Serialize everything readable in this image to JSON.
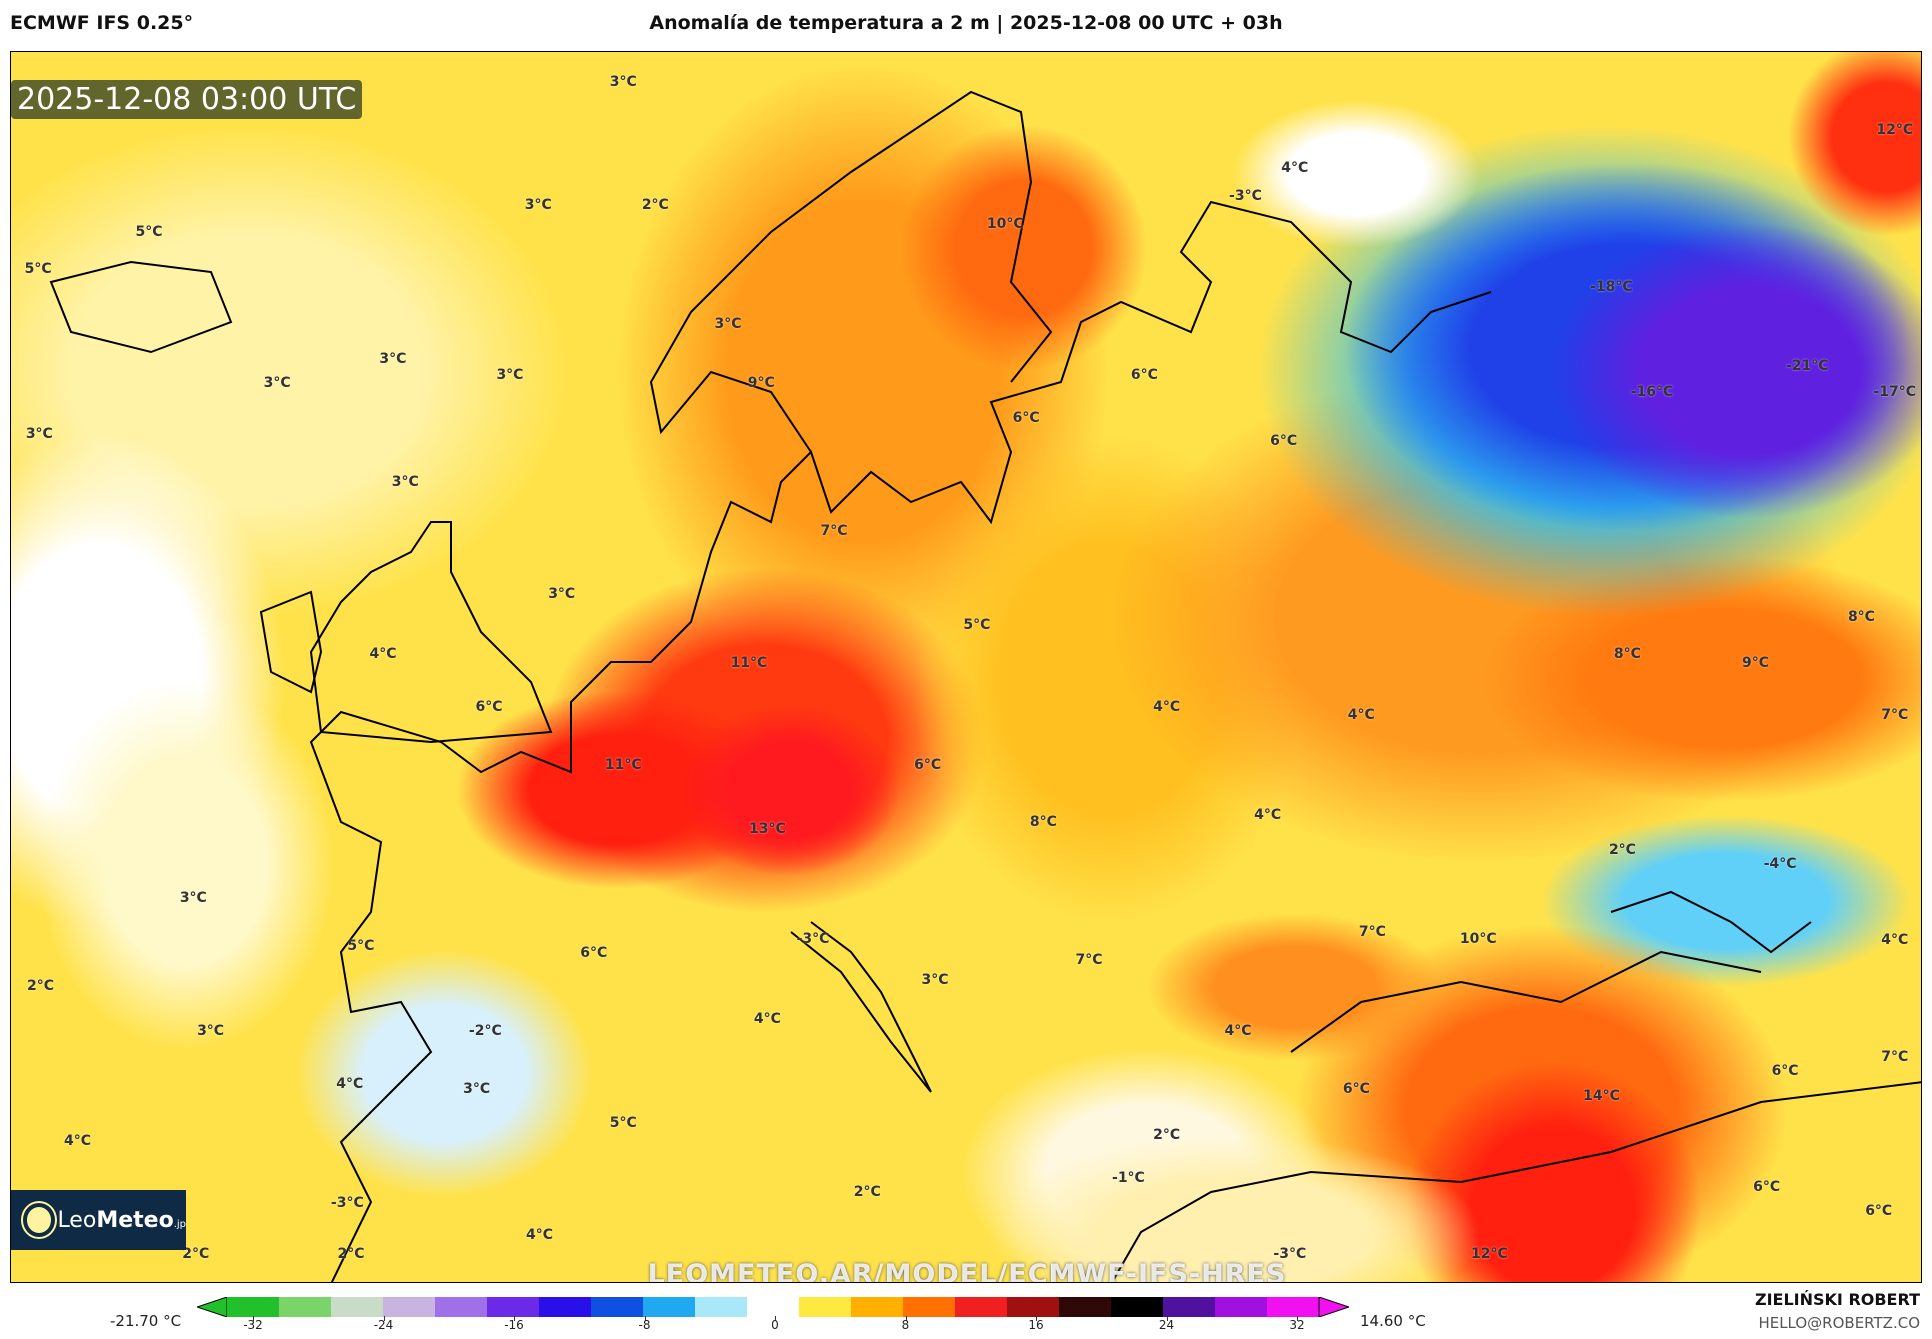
{
  "header": {
    "model": "ECMWF IFS 0.25°",
    "title": "Anomalía de temperatura a 2 m | 2025-12-08 00 UTC + 03h"
  },
  "map": {
    "valid_time": "2025-12-08 03:00 UTC",
    "logo": {
      "text_light": "Leo",
      "text_bold": "Meteo",
      "suffix": ".jp"
    },
    "watermark": "LEOMETEO.AR/MODEL/ECMWF-IFS-HRES",
    "labels": [
      "3°C",
      "3°C",
      "2°C",
      "5°C",
      "5°C",
      "10°C",
      "4°C",
      "-3°C",
      "12°C",
      "-18°C",
      "3°C",
      "3°C",
      "3°C",
      "3°C",
      "9°C",
      "6°C",
      "-21°C",
      "-16°C",
      "-17°C",
      "3°C",
      "6°C",
      "6°C",
      "3°C",
      "7°C",
      "3°C",
      "8°C",
      "5°C",
      "4°C",
      "11°C",
      "8°C",
      "9°C",
      "6°C",
      "4°C",
      "4°C",
      "7°C",
      "11°C",
      "6°C",
      "13°C",
      "8°C",
      "4°C",
      "2°C",
      "-4°C",
      "3°C",
      "7°C",
      "10°C",
      "-3°C",
      "5°C",
      "6°C",
      "4°C",
      "7°C",
      "3°C",
      "2°C",
      "4°C",
      "-2°C",
      "3°C",
      "4°C",
      "7°C",
      "3°C",
      "4°C",
      "6°C",
      "14°C",
      "6°C",
      "5°C",
      "2°C",
      "4°C",
      "-1°C",
      "2°C",
      "6°C",
      "-3°C",
      "4°C",
      "6°C",
      "2°C",
      "2°C",
      "-3°C",
      "12°C"
    ]
  },
  "colorbar": {
    "min_label": "-21.70 °C",
    "max_label": "14.60 °C",
    "ticks": [
      "-32",
      "-24",
      "-16",
      "-8",
      "0",
      "8",
      "16",
      "24",
      "32"
    ],
    "colors": [
      "#22c02a",
      "#7ad46a",
      "#c8dcc8",
      "#c8b4e0",
      "#a070e8",
      "#6a2ae8",
      "#2a10e8",
      "#1050e0",
      "#20a8f0",
      "#a8e8f8",
      "#ffffff",
      "#ffe840",
      "#ffb000",
      "#ff7000",
      "#f02020",
      "#a01010",
      "#300808",
      "#000000",
      "#5010a0",
      "#a010e0",
      "#f010f0"
    ]
  },
  "footer": {
    "author": "ZIELIŃSKI ROBERT",
    "email": "HELLO@ROBERTZ.CO"
  }
}
